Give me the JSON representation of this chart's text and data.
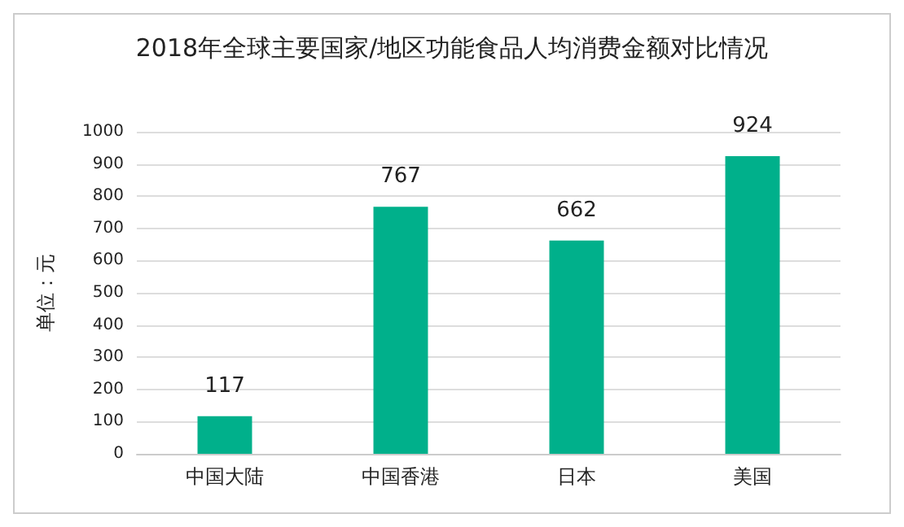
{
  "chart_data": {
    "type": "bar",
    "title": "2018年全球主要国家/地区功能食品人均消费金额对比情况",
    "ylabel": "单位：元",
    "categories": [
      "中国大陆",
      "中国香港",
      "日本",
      "美国"
    ],
    "values": [
      117,
      767,
      662,
      924
    ],
    "color": "#00b08b",
    "ylim": [
      0,
      1000
    ],
    "yticks": [
      0,
      100,
      200,
      300,
      400,
      500,
      600,
      700,
      800,
      900,
      1000
    ],
    "grid": "y",
    "data_labels": true
  }
}
